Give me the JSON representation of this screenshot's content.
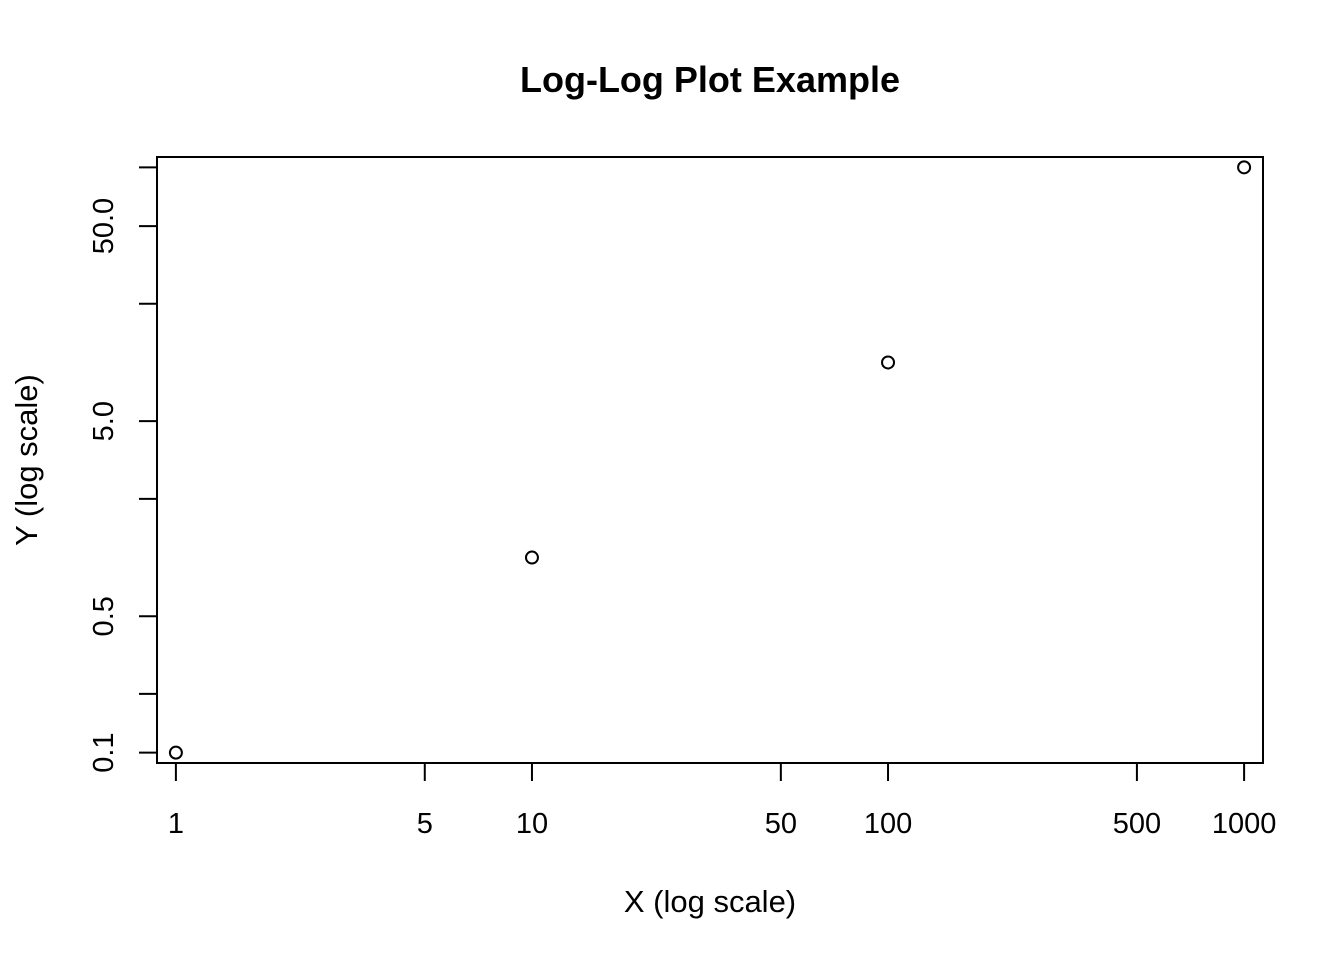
{
  "chart_data": {
    "type": "scatter",
    "title": "Log-Log Plot Example",
    "xlabel": "X (log scale)",
    "ylabel": "Y (log scale)",
    "x_scale": "log",
    "y_scale": "log",
    "grid": false,
    "legend": "none",
    "xlim": [
      0.885,
      1130
    ],
    "ylim": [
      0.0885,
      113
    ],
    "x_ticks": [
      {
        "value": 1,
        "label": "1"
      },
      {
        "value": 5,
        "label": "5"
      },
      {
        "value": 10,
        "label": "10"
      },
      {
        "value": 50,
        "label": "50"
      },
      {
        "value": 100,
        "label": "100"
      },
      {
        "value": 500,
        "label": "500"
      },
      {
        "value": 1000,
        "label": "1000"
      }
    ],
    "y_ticks": [
      {
        "value": 0.1,
        "label": "0.1"
      },
      {
        "value": 0.2,
        "label": ""
      },
      {
        "value": 0.5,
        "label": "0.5"
      },
      {
        "value": 2,
        "label": ""
      },
      {
        "value": 5,
        "label": "5.0"
      },
      {
        "value": 20,
        "label": ""
      },
      {
        "value": 50,
        "label": "50.0"
      },
      {
        "value": 100,
        "label": ""
      }
    ],
    "points": [
      {
        "x": 1,
        "y": 0.1
      },
      {
        "x": 10,
        "y": 1
      },
      {
        "x": 100,
        "y": 10
      },
      {
        "x": 1000,
        "y": 100
      }
    ],
    "colors": {
      "point": "#000000",
      "axis": "#000000",
      "background": "#ffffff"
    }
  }
}
